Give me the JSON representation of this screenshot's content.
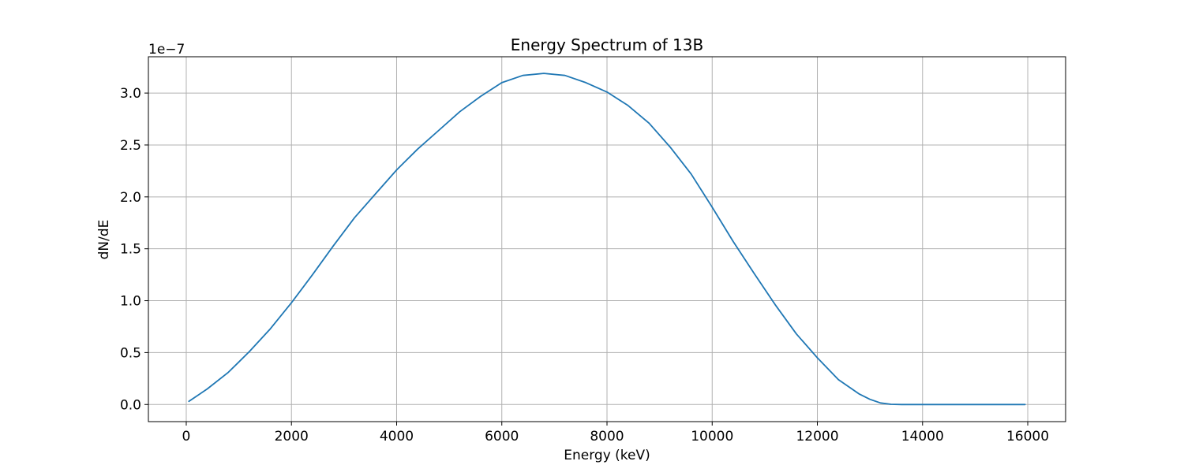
{
  "chart_data": {
    "type": "line",
    "title": "Energy Spectrum of 13B",
    "xlabel": "Energy (keV)",
    "ylabel": "dN/dE",
    "y_offset_label": "1e−7",
    "y_scale_factor": 1e-07,
    "xlim": [
      -720,
      16720
    ],
    "ylim": [
      -0.165,
      3.35
    ],
    "x_ticks": [
      0,
      2000,
      4000,
      6000,
      8000,
      10000,
      12000,
      14000,
      16000
    ],
    "x_tick_labels": [
      "0",
      "2000",
      "4000",
      "6000",
      "8000",
      "10000",
      "12000",
      "14000",
      "16000"
    ],
    "y_ticks": [
      0.0,
      0.5,
      1.0,
      1.5,
      2.0,
      2.5,
      3.0
    ],
    "y_tick_labels": [
      "0.0",
      "0.5",
      "1.0",
      "1.5",
      "2.0",
      "2.5",
      "3.0"
    ],
    "grid": true,
    "line_color": "#1f77b4",
    "series": [
      {
        "x": [
          50,
          400,
          800,
          1000,
          1200,
          1600,
          2000,
          2400,
          2800,
          3200,
          3600,
          4000,
          4400,
          4800,
          5200,
          5600,
          6000,
          6400,
          6800,
          7200,
          7600,
          8000,
          8400,
          8800,
          9200,
          9600,
          10000,
          10400,
          10800,
          11200,
          11600,
          12000,
          12400,
          12800,
          13000,
          13200,
          13400,
          13600,
          14000,
          15000,
          15950
        ],
        "y": [
          0.03,
          0.15,
          0.31,
          0.41,
          0.51,
          0.73,
          0.98,
          1.25,
          1.53,
          1.8,
          2.03,
          2.26,
          2.46,
          2.64,
          2.82,
          2.97,
          3.1,
          3.17,
          3.19,
          3.17,
          3.1,
          3.01,
          2.88,
          2.71,
          2.48,
          2.22,
          1.9,
          1.57,
          1.26,
          0.96,
          0.68,
          0.45,
          0.24,
          0.1,
          0.05,
          0.015,
          0.002,
          0.0,
          0.0,
          0.0,
          0.0
        ]
      }
    ]
  }
}
